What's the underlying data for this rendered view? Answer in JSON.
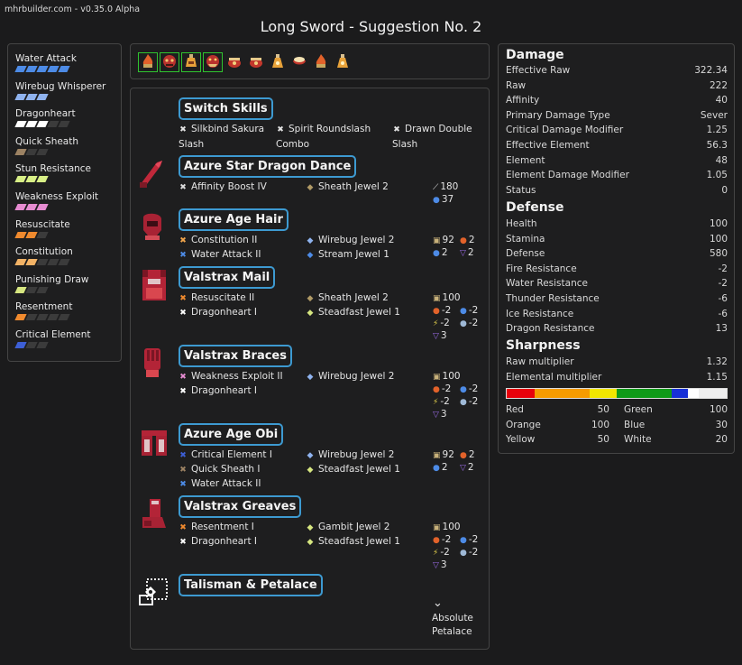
{
  "version": "mhrbuilder.com - v0.35.0 Alpha",
  "title": "Long Sword - Suggestion No. 2",
  "colors": {
    "accent": "#3d9ad1",
    "slot_border": "#2fc42f"
  },
  "skills": [
    {
      "name": "Water Attack",
      "level": 5,
      "max": 5,
      "color": "#4d8be6"
    },
    {
      "name": "Wirebug Whisperer",
      "level": 3,
      "max": 3,
      "color": "#8fb3ef"
    },
    {
      "name": "Dragonheart",
      "level": 3,
      "max": 5,
      "color": "#ffffff"
    },
    {
      "name": "Quick Sheath",
      "level": 1,
      "max": 3,
      "color": "#9c8263"
    },
    {
      "name": "Stun Resistance",
      "level": 3,
      "max": 3,
      "color": "#d8ef86"
    },
    {
      "name": "Weakness Exploit",
      "level": 3,
      "max": 3,
      "color": "#e68bd1"
    },
    {
      "name": "Resuscitate",
      "level": 2,
      "max": 3,
      "color": "#f08a2e"
    },
    {
      "name": "Constitution",
      "level": 2,
      "max": 5,
      "color": "#f3b366"
    },
    {
      "name": "Punishing Draw",
      "level": 1,
      "max": 3,
      "color": "#d6e680"
    },
    {
      "name": "Resentment",
      "level": 1,
      "max": 5,
      "color": "#f08a2e"
    },
    {
      "name": "Critical Element",
      "level": 1,
      "max": 3,
      "color": "#3d5fd6"
    }
  ],
  "deco_slots": [
    {
      "icon": "fire-deco-icon",
      "equipped": true
    },
    {
      "icon": "dragon-deco-icon",
      "equipped": true
    },
    {
      "icon": "potion-deco-icon",
      "equipped": true
    },
    {
      "icon": "wyvern-deco-icon",
      "equipped": true
    },
    {
      "icon": "pot-deco-icon",
      "equipped": false
    },
    {
      "icon": "pot-deco-icon",
      "equipped": false
    },
    {
      "icon": "flask-deco-icon",
      "equipped": false
    },
    {
      "icon": "bowl-deco-icon",
      "equipped": false
    },
    {
      "icon": "fire-deco-icon",
      "equipped": false
    },
    {
      "icon": "flask-deco-icon",
      "equipped": false
    }
  ],
  "switch_skills": {
    "heading": "Switch Skills",
    "items": [
      "Silkbind Sakura",
      "Slash",
      "Spirit Roundslash",
      "Combo",
      "Drawn Double",
      "Slash"
    ]
  },
  "pieces": [
    {
      "heading": "Azure Star Dragon Dance",
      "skills": [
        "Affinity Boost IV"
      ],
      "jewels": [
        "Sheath Jewel 2"
      ],
      "stats": [
        "180",
        "37"
      ]
    },
    {
      "heading": "Azure Age Hair",
      "skills": [
        "Constitution II",
        "Water Attack II"
      ],
      "jewels": [
        "Wirebug Jewel 2",
        "Stream Jewel 1"
      ],
      "stats": [
        "92",
        "2",
        "2",
        "2"
      ]
    },
    {
      "heading": "Valstrax Mail",
      "skills": [
        "Resuscitate II",
        "Dragonheart I"
      ],
      "jewels": [
        "Sheath Jewel 2",
        "Steadfast Jewel 1"
      ],
      "stats": [
        "100",
        "-2",
        "-2",
        "-2",
        "-2",
        "3"
      ]
    },
    {
      "heading": "Valstrax Braces",
      "skills": [
        "Weakness Exploit II",
        "Dragonheart I"
      ],
      "jewels": [
        "Wirebug Jewel 2"
      ],
      "stats": [
        "100",
        "-2",
        "-2",
        "-2",
        "-2",
        "3"
      ]
    },
    {
      "heading": "Azure Age Obi",
      "skills": [
        "Critical Element I",
        "Quick Sheath I",
        "Water Attack II"
      ],
      "jewels": [
        "Wirebug Jewel 2",
        "Steadfast Jewel 1"
      ],
      "stats": [
        "92",
        "2",
        "2",
        "2"
      ]
    },
    {
      "heading": "Valstrax Greaves",
      "skills": [
        "Resentment I",
        "Dragonheart I"
      ],
      "jewels": [
        "Gambit Jewel 2",
        "Steadfast Jewel 1"
      ],
      "stats": [
        "100",
        "-2",
        "-2",
        "-2",
        "-2",
        "3"
      ]
    },
    {
      "heading": "Talisman & Petalace",
      "skills": [],
      "jewels": [],
      "stats": [
        "Absolute",
        "Petalace"
      ]
    }
  ],
  "damage": {
    "title": "Damage",
    "rows": [
      {
        "label": "Effective Raw",
        "value": "322.34"
      },
      {
        "label": "Raw",
        "value": "222"
      },
      {
        "label": "Affinity",
        "value": "40"
      },
      {
        "label": "Primary Damage Type",
        "value": "Sever"
      },
      {
        "label": "Critical Damage Modifier",
        "value": "1.25"
      },
      {
        "label": "Effective Element",
        "value": "56.3"
      },
      {
        "label": "Element",
        "value": "48"
      },
      {
        "label": "Element Damage Modifier",
        "value": "1.05"
      },
      {
        "label": "Status",
        "value": "0"
      }
    ]
  },
  "defense": {
    "title": "Defense",
    "rows": [
      {
        "label": "Health",
        "value": "100"
      },
      {
        "label": "Stamina",
        "value": "100"
      },
      {
        "label": "Defense",
        "value": "580"
      },
      {
        "label": "Fire Resistance",
        "value": "-2"
      },
      {
        "label": "Water Resistance",
        "value": "-2"
      },
      {
        "label": "Thunder Resistance",
        "value": "-6"
      },
      {
        "label": "Ice Resistance",
        "value": "-6"
      },
      {
        "label": "Dragon Resistance",
        "value": "13"
      }
    ]
  },
  "sharpness": {
    "title": "Sharpness",
    "rows": [
      {
        "label": "Raw multiplier",
        "value": "1.32"
      },
      {
        "label": "Elemental multiplier",
        "value": "1.15"
      }
    ],
    "segments": [
      {
        "color": "#e8000b",
        "value": 50
      },
      {
        "color": "#f59b00",
        "value": 100
      },
      {
        "color": "#f2e600",
        "value": 50
      },
      {
        "color": "#0f9a17",
        "value": 100
      },
      {
        "color": "#1730d6",
        "value": 30
      },
      {
        "color": "#ffffff",
        "value": 20
      }
    ],
    "colors": [
      {
        "label": "Red",
        "value": "50"
      },
      {
        "label": "Green",
        "value": "100"
      },
      {
        "label": "Orange",
        "value": "100"
      },
      {
        "label": "Blue",
        "value": "30"
      },
      {
        "label": "Yellow",
        "value": "50"
      },
      {
        "label": "White",
        "value": "20"
      }
    ]
  }
}
